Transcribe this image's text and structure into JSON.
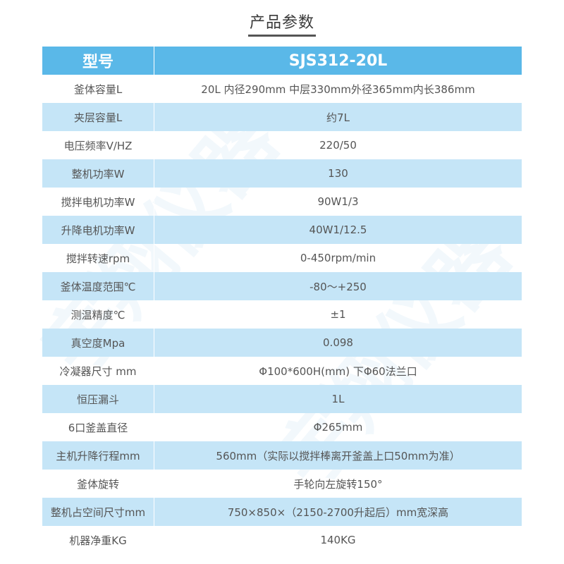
{
  "title": "产品参数",
  "watermark": "宇翔仪器",
  "header": {
    "label": "型号",
    "value": "SJS312-20L"
  },
  "rows": [
    {
      "label": "釜体容量L",
      "value": "20L  内径290mm 中层330mm外径365mm内长386mm"
    },
    {
      "label": "夹层容量L",
      "value": "约7L"
    },
    {
      "label": "电压频率V/HZ",
      "value": "220/50"
    },
    {
      "label": "整机功率W",
      "value": "130"
    },
    {
      "label": "搅拌电机功率W",
      "value": "90W1/3"
    },
    {
      "label": "升降电机功率W",
      "value": "40W1/12.5"
    },
    {
      "label": "搅拌转速rpm",
      "value": "0-450rpm/min"
    },
    {
      "label": "釜体温度范围℃",
      "value": "-80～+250"
    },
    {
      "label": "测温精度℃",
      "value": "±1"
    },
    {
      "label": "真空度Mpa",
      "value": "0.098"
    },
    {
      "label": "冷凝器尺寸 mm",
      "value": "Φ100*600H(mm)  下Φ60法兰口"
    },
    {
      "label": "恒压漏斗",
      "value": "1L"
    },
    {
      "label": "6口釜盖直径",
      "value": "Φ265mm"
    },
    {
      "label": "主机升降行程mm",
      "value": "560mm（实际以搅拌棒离开釜盖上口50mm为准）"
    },
    {
      "label": "釜体旋转",
      "value": "手轮向左旋转150°"
    },
    {
      "label": "整机占空间尺寸mm",
      "value": "750×850×（2150-2700升起后）mm宽深高"
    },
    {
      "label": "机器净重KG",
      "value": "140KG"
    }
  ],
  "colors": {
    "header_bg": "#5ab8e8",
    "alt_row_bg": "#c5e5f7"
  }
}
